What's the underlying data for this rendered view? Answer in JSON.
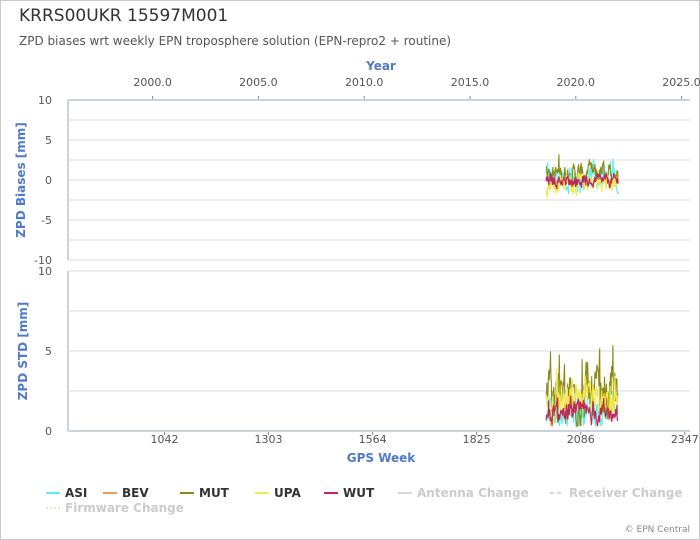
{
  "header": {
    "title": "KRRS00UKR 15597M001",
    "subtitle": "ZPD biases wrt weekly EPN troposphere solution (EPN-repro2 + routine)"
  },
  "footer": {
    "copyright": "© EPN Central"
  },
  "colors": {
    "ASI": "#5ff0f0",
    "BEV": "#f09a5a",
    "MUT": "#8a8a14",
    "UPA": "#f5e84a",
    "WUT": "#c0265c",
    "axis_label": "#4f79cc",
    "grid": "#dddddd"
  },
  "chart_data": [
    {
      "type": "line",
      "ylabel": "ZPD Biases [mm]",
      "ylim": [
        -10,
        10
      ],
      "yticks": [
        "10",
        "5",
        "0",
        "-5",
        "-10"
      ],
      "xlabel_top": "Year",
      "xlim_year": [
        1996.0,
        2025.4
      ],
      "xticks_top": [
        "2000.0",
        "2005.0",
        "2010.0",
        "2015.0",
        "2020.0",
        "2025.0"
      ],
      "grid": true,
      "series": [
        {
          "name": "ASI",
          "range": [
            2018.6,
            2022.0
          ],
          "center": 0.3,
          "amp": 1.4
        },
        {
          "name": "MUT",
          "range": [
            2018.6,
            2022.0
          ],
          "center": 0.8,
          "amp": 0.9
        },
        {
          "name": "UPA",
          "range": [
            2018.6,
            2022.0
          ],
          "center": -0.4,
          "amp": 0.9
        },
        {
          "name": "WUT",
          "range": [
            2018.6,
            2022.0
          ],
          "center": -0.1,
          "amp": 0.6
        }
      ]
    },
    {
      "type": "line",
      "ylabel": "ZPD STD [mm]",
      "ylim": [
        0,
        10
      ],
      "yticks": [
        "10",
        "5",
        "0"
      ],
      "xlabel": "GPS Week",
      "xlim_week": [
        800,
        2360
      ],
      "xticks": [
        "1042",
        "1303",
        "1564",
        "1825",
        "2086",
        "2347"
      ],
      "grid": true,
      "series": [
        {
          "name": "ASI",
          "range": [
            2018.6,
            2022.0
          ],
          "center": 1.2,
          "amp": 0.7
        },
        {
          "name": "MUT",
          "range": [
            2018.6,
            2022.0
          ],
          "center": 2.2,
          "amp": 1.3
        },
        {
          "name": "UPA",
          "range": [
            2018.6,
            2022.0
          ],
          "center": 1.6,
          "amp": 0.8
        },
        {
          "name": "WUT",
          "range": [
            2018.6,
            2022.0
          ],
          "center": 1.1,
          "amp": 0.5
        }
      ]
    }
  ],
  "legend": {
    "placement": "bottom",
    "items": [
      {
        "label": "ASI",
        "color": "#5ff0f0",
        "style": "solid",
        "muted": false
      },
      {
        "label": "BEV",
        "color": "#f09a5a",
        "style": "solid",
        "muted": false
      },
      {
        "label": "MUT",
        "color": "#8a8a14",
        "style": "solid",
        "muted": false
      },
      {
        "label": "UPA",
        "color": "#f5e84a",
        "style": "solid",
        "muted": false
      },
      {
        "label": "WUT",
        "color": "#c0265c",
        "style": "solid",
        "muted": false
      },
      {
        "label": "Antenna Change",
        "color": "#d8d8d8",
        "style": "solid",
        "muted": true
      },
      {
        "label": "Receiver Change",
        "color": "#d8d8d8",
        "style": "dashed",
        "muted": true
      },
      {
        "label": "Firmware Change",
        "color": "#e8e8c8",
        "style": "dotted",
        "muted": true
      }
    ]
  }
}
